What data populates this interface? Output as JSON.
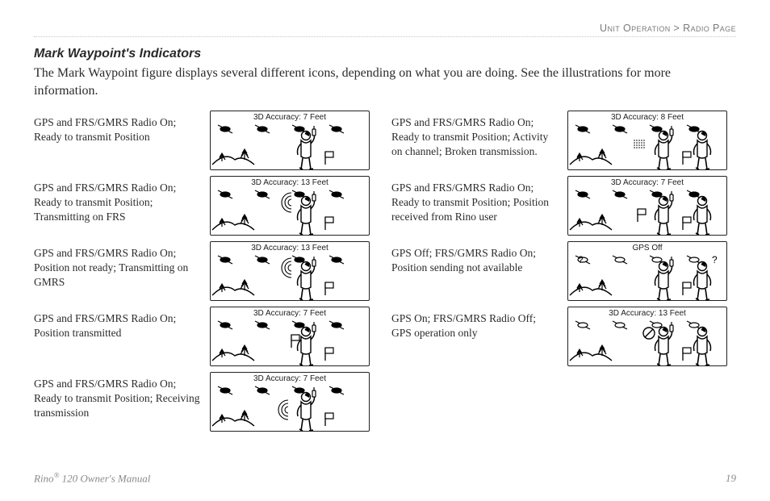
{
  "breadcrumb": {
    "left": "Unit Operation",
    "sep": " > ",
    "right": "Radio Page"
  },
  "heading": "Mark Waypoint's Indicators",
  "lede": "The Mark Waypoint figure displays several different icons, depending on what you are doing. See the illustrations for more information.",
  "colors": {
    "text": "#2b2b2b",
    "muted": "#7a7a7a",
    "rule": "#c6c6c6",
    "border": "#222222",
    "bg": "#ffffff"
  },
  "left_items": [
    {
      "desc": "GPS and FRS/GMRS Radio On; Ready to transmit Position",
      "accuracy": "3D Accuracy: 7 Feet",
      "variant": "idle"
    },
    {
      "desc": "GPS and FRS/GMRS Radio On; Ready to transmit Position; Transmitting on FRS",
      "accuracy": "3D Accuracy: 13 Feet",
      "variant": "tx_frs"
    },
    {
      "desc": "GPS and FRS/GMRS Radio On; Position not ready; Transmitting on GMRS",
      "accuracy": "3D Accuracy: 13 Feet",
      "variant": "tx_gmrs"
    },
    {
      "desc": "GPS and FRS/GMRS Radio On; Position transmitted",
      "accuracy": "3D Accuracy: 7 Feet",
      "variant": "sent"
    },
    {
      "desc": "GPS and FRS/GMRS Radio On; Ready to transmit Position; Receiving transmission",
      "accuracy": "3D Accuracy: 7 Feet",
      "variant": "rx"
    }
  ],
  "right_items": [
    {
      "desc": "GPS and FRS/GMRS Radio On; Ready to transmit Position; Activity on channel; Broken transmission.",
      "accuracy": "3D Accuracy: 8 Feet",
      "variant": "broken"
    },
    {
      "desc": "GPS and FRS/GMRS Radio On; Ready to transmit Position; Position received from Rino user",
      "accuracy": "3D Accuracy: 7 Feet",
      "variant": "pos_rx"
    },
    {
      "desc": "GPS Off; FRS/GMRS Radio On; Position sending not available",
      "accuracy": "GPS Off",
      "variant": "gps_off"
    },
    {
      "desc": "GPS On; FRS/GMRS Radio Off; GPS operation only",
      "accuracy": "3D Accuracy: 13 Feet",
      "variant": "radio_off"
    }
  ],
  "footer": {
    "product": "Rino",
    "reg": "®",
    "tail": " 120 Owner's Manual",
    "page": "19"
  }
}
